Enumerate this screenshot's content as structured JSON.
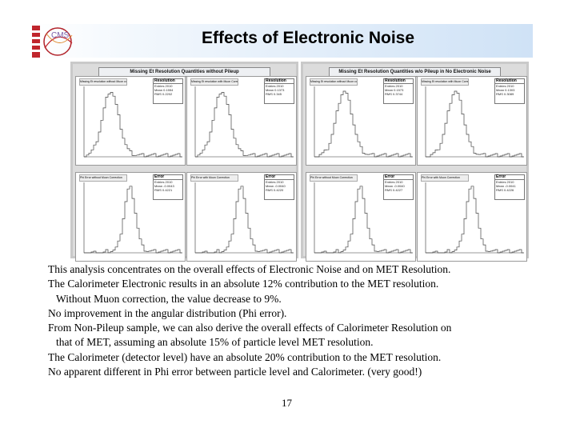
{
  "slide": {
    "title": "Effects of Electronic Noise",
    "logo_text": "CMS",
    "page_number": "17"
  },
  "panels": [
    {
      "title": "Missing Et Resolution Quantities without Pileup",
      "plots": [
        {
          "label": "Missing Et resolution without Muon correction",
          "stat_title": "Resolution",
          "stats": [
            "Entries 2010",
            "Mean 0.1554",
            "RMS 0.2202"
          ]
        },
        {
          "label": "Missing Et resolution with Muon Correction",
          "stat_title": "Resolution",
          "stats": [
            "Entries 2010",
            "Mean 0.1373",
            "RMS 0.345"
          ]
        },
        {
          "label": "Phi Error without Muon Correction",
          "stat_title": "Error",
          "stats": [
            "Entries 2010",
            "Mean -0.0043",
            "RMS 0.4221"
          ]
        },
        {
          "label": "Phi Error with Muon Correction",
          "stat_title": "Error",
          "stats": [
            "Entries 2010",
            "Mean -0.0040",
            "RMS 0.4220"
          ]
        }
      ]
    },
    {
      "title": "Missing Et Resolution Quantities w/o Pileup in No Electronic Noise",
      "plots": [
        {
          "label": "Missing Et resolution without Muon correction",
          "stat_title": "Resolution",
          "stats": [
            "Entries 2010",
            "Mean 0.1573",
            "RMS 0.3744"
          ]
        },
        {
          "label": "Missing Et resolution with Muon Correction",
          "stat_title": "Resolution",
          "stats": [
            "Entries 2010",
            "Mean 0.1303",
            "RMS 0.3089"
          ]
        },
        {
          "label": "Phi Error without Muon Correction",
          "stat_title": "Error",
          "stats": [
            "Entries 2010",
            "Mean -0.0040",
            "RMS 0.4227"
          ]
        },
        {
          "label": "Phi Error with Muon Correction",
          "stat_title": "Error",
          "stats": [
            "Entries 2010",
            "Mean -0.0041",
            "RMS 0.4226"
          ]
        }
      ]
    }
  ],
  "body": {
    "lines": [
      "This analysis concentrates on the overall effects of Electronic Noise and on MET Resolution.",
      "The Calorimeter Electronic results in an absolute 12% contribution to the MET resolution.",
      "Without Muon correction, the value decrease to 9%.",
      "No improvement in the angular distribution (Phi error).",
      "From Non-Pileup sample, we can also derive the overall effects of Calorimeter Resolution on",
      "that of MET, assuming an absolute 15% of particle level MET resolution.",
      "The Calorimeter (detector level) have an absolute 20% contribution to the MET resolution.",
      "No apparent different in Phi error between particle level and Calorimeter. (very good!)"
    ]
  }
}
